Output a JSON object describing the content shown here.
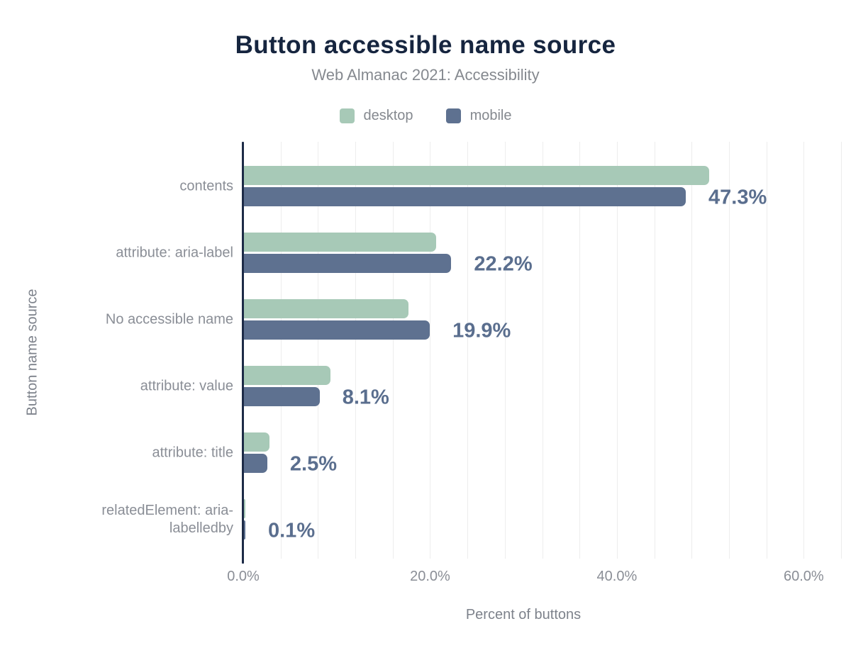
{
  "chart_data": {
    "type": "bar",
    "orientation": "horizontal",
    "title": "Button accessible name source",
    "subtitle": "Web Almanac 2021: Accessibility",
    "xlabel": "Percent of buttons",
    "ylabel": "Button name source",
    "categories": [
      "contents",
      "attribute: aria-label",
      "No accessible name",
      "attribute: value",
      "attribute: title",
      "relatedElement: aria-labelledby"
    ],
    "series": [
      {
        "name": "desktop",
        "color": "#a7c9b7",
        "values": [
          49.8,
          20.6,
          17.6,
          9.3,
          2.7,
          0.1
        ]
      },
      {
        "name": "mobile",
        "color": "#5e7190",
        "values": [
          47.3,
          22.2,
          19.9,
          8.1,
          2.5,
          0.1
        ]
      }
    ],
    "value_labels": [
      "47.3%",
      "22.2%",
      "19.9%",
      "8.1%",
      "2.5%",
      "0.1%"
    ],
    "value_labels_series": "mobile",
    "x_ticks": [
      {
        "value": 0,
        "label": "0.0%"
      },
      {
        "value": 20,
        "label": "20.0%"
      },
      {
        "value": 40,
        "label": "40.0%"
      },
      {
        "value": 60,
        "label": "60.0%"
      }
    ],
    "xlim": [
      0,
      64
    ],
    "grid_step": 4,
    "grid": true,
    "legend_position": "top",
    "colors": {
      "title_text": "#16253f",
      "muted_text": "#8a8e96",
      "axis_title_text": "#7d828b",
      "value_label_text": "#5a6e8e",
      "axis_line": "#1d2b47",
      "gridline": "#ededed",
      "background": "#ffffff"
    }
  }
}
